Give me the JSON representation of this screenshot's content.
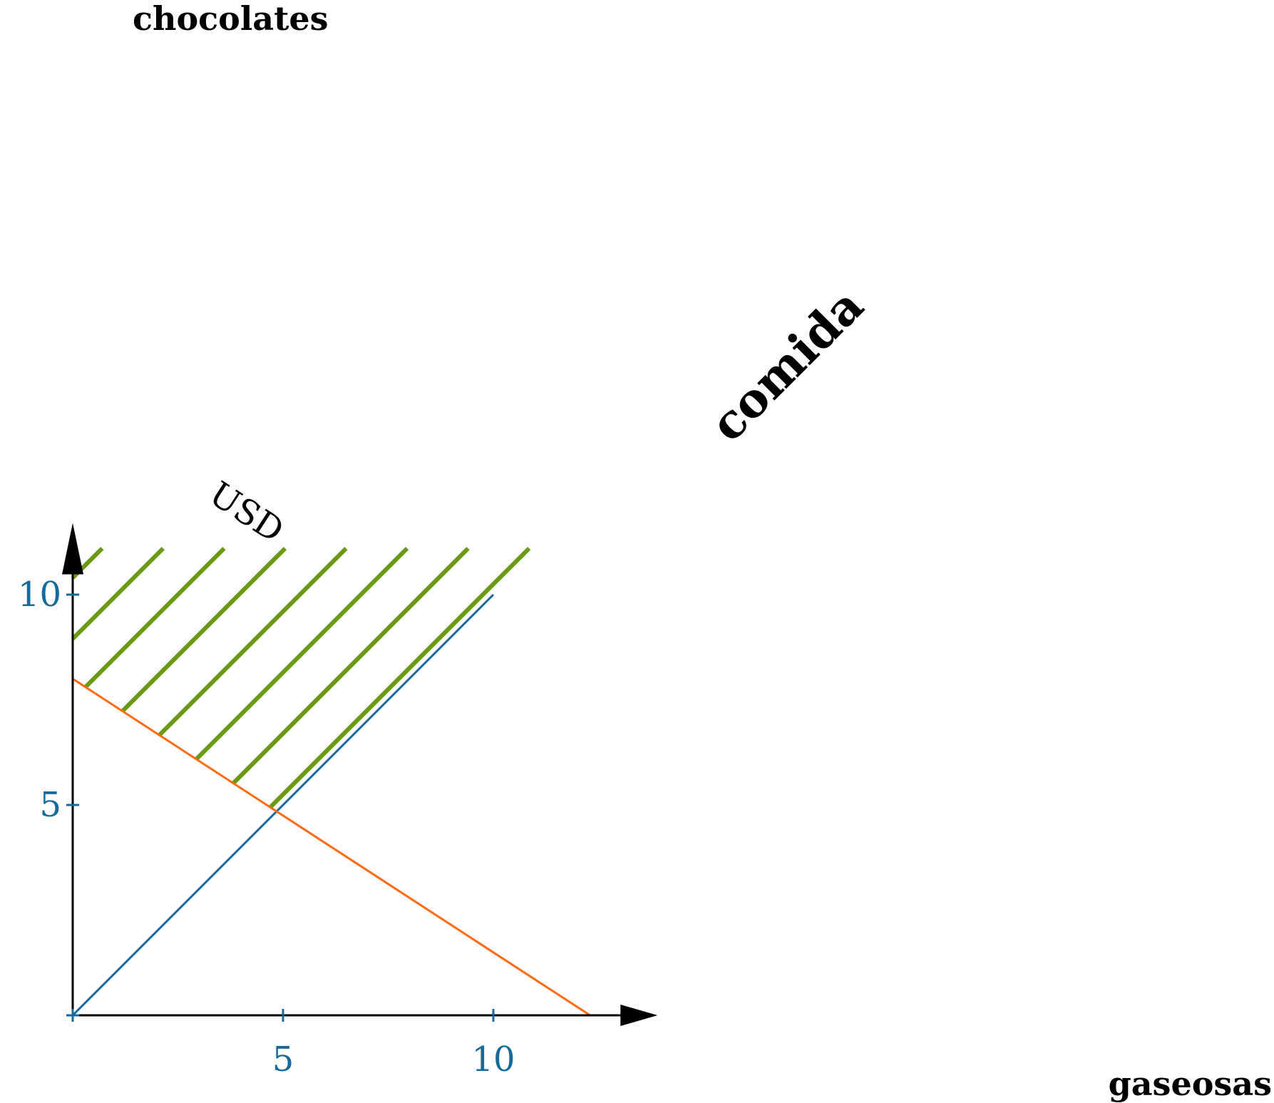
{
  "colors": {
    "axis": "#000000",
    "accent_blue": "#16699b",
    "accent_orange": "#ff6a12",
    "accent_green": "#6a9a14"
  },
  "chart_data": {
    "type": "line",
    "xlabel": "gaseosas",
    "ylabel": "chocolates",
    "xlim": [
      0,
      13.7
    ],
    "ylim": [
      0,
      11.5
    ],
    "x_ticks": [
      {
        "value": 0,
        "label": ""
      },
      {
        "value": 5,
        "label": "5"
      },
      {
        "value": 10,
        "label": "10"
      }
    ],
    "y_ticks": [
      {
        "value": 0,
        "label": ""
      },
      {
        "value": 5,
        "label": "5"
      },
      {
        "value": 10,
        "label": "10"
      }
    ],
    "grid": false,
    "series": [
      {
        "name": "comida",
        "color": "#16699b",
        "points": [
          [
            0,
            0
          ],
          [
            10,
            10
          ]
        ]
      },
      {
        "name": "USD",
        "color": "#ff6a12",
        "points": [
          [
            0,
            8
          ],
          [
            12.3,
            0
          ]
        ]
      }
    ],
    "shaded_region": {
      "description_color": "#6a9a14",
      "hatch_offsets": [
        10.4,
        8.95,
        7.5,
        6.05,
        4.6,
        3.15,
        1.7,
        0.25
      ],
      "ymax": 11.1
    }
  }
}
